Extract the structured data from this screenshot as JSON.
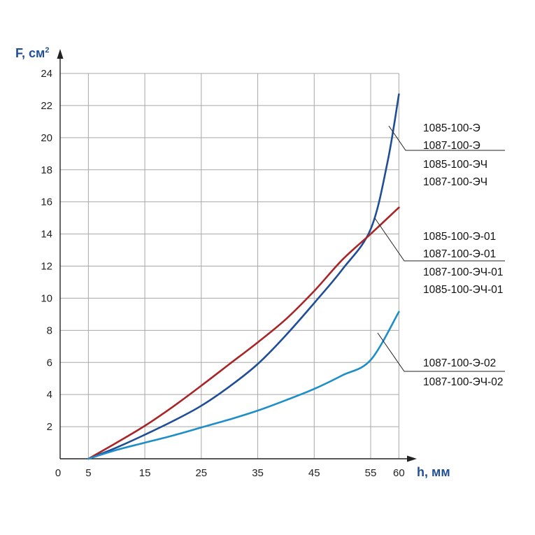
{
  "chart_data": {
    "type": "line",
    "xlabel": "h, мм",
    "ylabel": "F, см",
    "ylabel_sup": "2",
    "x_origin_label": "0",
    "xticks": [
      5,
      15,
      25,
      35,
      45,
      55,
      60
    ],
    "yticks": [
      2,
      4,
      6,
      8,
      10,
      12,
      14,
      16,
      18,
      20,
      22,
      24
    ],
    "xlim": [
      0,
      60
    ],
    "ylim": [
      0,
      24
    ],
    "grid": true,
    "series": [
      {
        "name": "1085-100-Э / 1087-100-Э / 1085-100-ЭЧ / 1087-100-ЭЧ",
        "color": "#1f4e96",
        "labels": [
          "1085-100-Э",
          "1087-100-Э",
          "1085-100-ЭЧ",
          "1087-100-ЭЧ"
        ],
        "x": [
          5,
          10,
          15,
          20,
          25,
          30,
          35,
          40,
          45,
          50,
          55,
          58,
          60
        ],
        "y": [
          0,
          0.7,
          1.5,
          2.35,
          3.3,
          4.5,
          5.9,
          7.7,
          9.7,
          11.8,
          14.3,
          18.5,
          22.7
        ]
      },
      {
        "name": "1085-100-Э-01 / 1087-100-Э-01 / 1087-100-ЭЧ-01 / 1085-100-ЭЧ-01",
        "color": "#a82528",
        "labels": [
          "1085-100-Э-01",
          "1087-100-Э-01",
          "1087-100-ЭЧ-01",
          "1085-100-ЭЧ-01"
        ],
        "x": [
          5,
          10,
          15,
          20,
          25,
          30,
          35,
          40,
          45,
          50,
          55,
          60
        ],
        "y": [
          0,
          1.0,
          2.05,
          3.25,
          4.55,
          5.9,
          7.25,
          8.7,
          10.45,
          12.4,
          14.0,
          15.65
        ]
      },
      {
        "name": "1087-100-Э-02 / 1087-100-ЭЧ-02",
        "color": "#1e8ec9",
        "labels": [
          "1087-100-Э-02",
          "1087-100-ЭЧ-02"
        ],
        "x": [
          5,
          10,
          15,
          20,
          25,
          30,
          35,
          40,
          45,
          50,
          55,
          60
        ],
        "y": [
          0,
          0.55,
          1.0,
          1.45,
          1.95,
          2.45,
          3.0,
          3.65,
          4.35,
          5.2,
          6.15,
          9.15
        ]
      }
    ]
  }
}
